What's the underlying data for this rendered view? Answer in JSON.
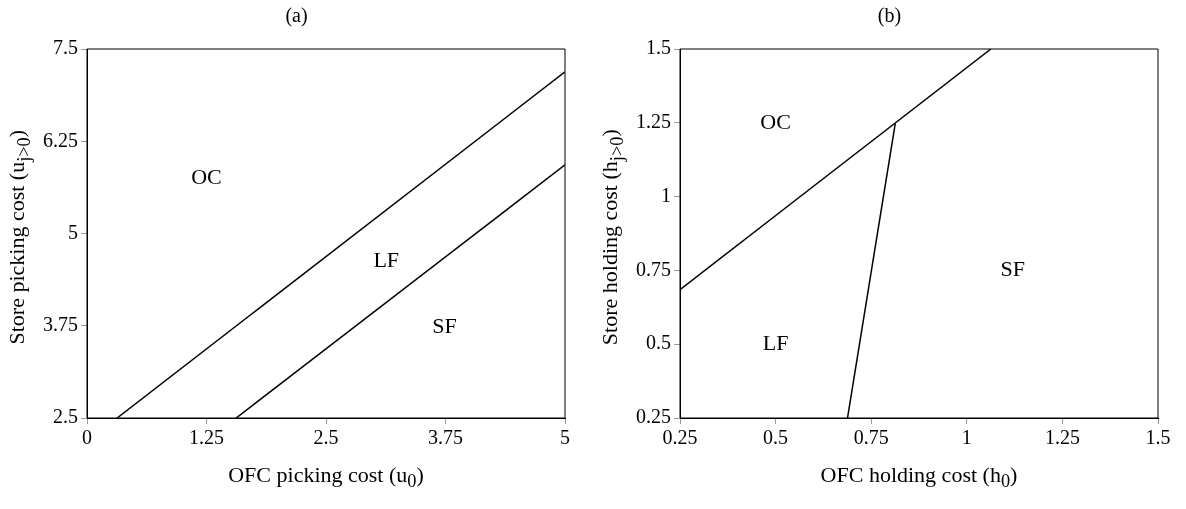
{
  "chart_data": [
    {
      "type": "line",
      "title": "(a)",
      "xlabel": "OFC picking cost (u$_{0}$)",
      "ylabel": "Store picking cost (u$_{j>0}$)",
      "xlim": [
        0,
        5
      ],
      "ylim": [
        2.5,
        7.5
      ],
      "xticks": [
        0,
        1.25,
        2.5,
        3.75,
        5
      ],
      "yticks": [
        2.5,
        3.75,
        5,
        6.25,
        7.5
      ],
      "grid": false,
      "legend": false,
      "marker": "none",
      "line_style": "solid",
      "series": [
        {
          "color": "#000000",
          "x": [
            0.315,
            5
          ],
          "values": [
            2.5,
            7.19
          ]
        },
        {
          "color": "#000000",
          "x": [
            1.56,
            5
          ],
          "values": [
            2.5,
            5.93
          ]
        }
      ],
      "annotations": [
        "OC",
        "LF",
        "SF"
      ]
    },
    {
      "type": "line",
      "title": "(b)",
      "xlabel": "OFC holding cost (h$_{0}$)",
      "ylabel": "Store holding cost (h$_{j>0}$)",
      "xlim": [
        0.25,
        1.5
      ],
      "ylim": [
        0.25,
        1.5
      ],
      "xticks": [
        0.25,
        0.5,
        0.75,
        1,
        1.25,
        1.5
      ],
      "yticks": [
        0.25,
        0.5,
        0.75,
        1,
        1.25,
        1.5
      ],
      "grid": false,
      "legend": false,
      "marker": "none",
      "line_style": "solid",
      "series": [
        {
          "color": "#000000",
          "x": [
            0.25,
            1.063
          ],
          "values": [
            0.685,
            1.5
          ]
        },
        {
          "color": "#000000",
          "x": [
            0.688,
            0.813
          ],
          "values": [
            0.25,
            1.248
          ]
        }
      ],
      "annotations": [
        "OC",
        "LF",
        "SF"
      ]
    }
  ]
}
